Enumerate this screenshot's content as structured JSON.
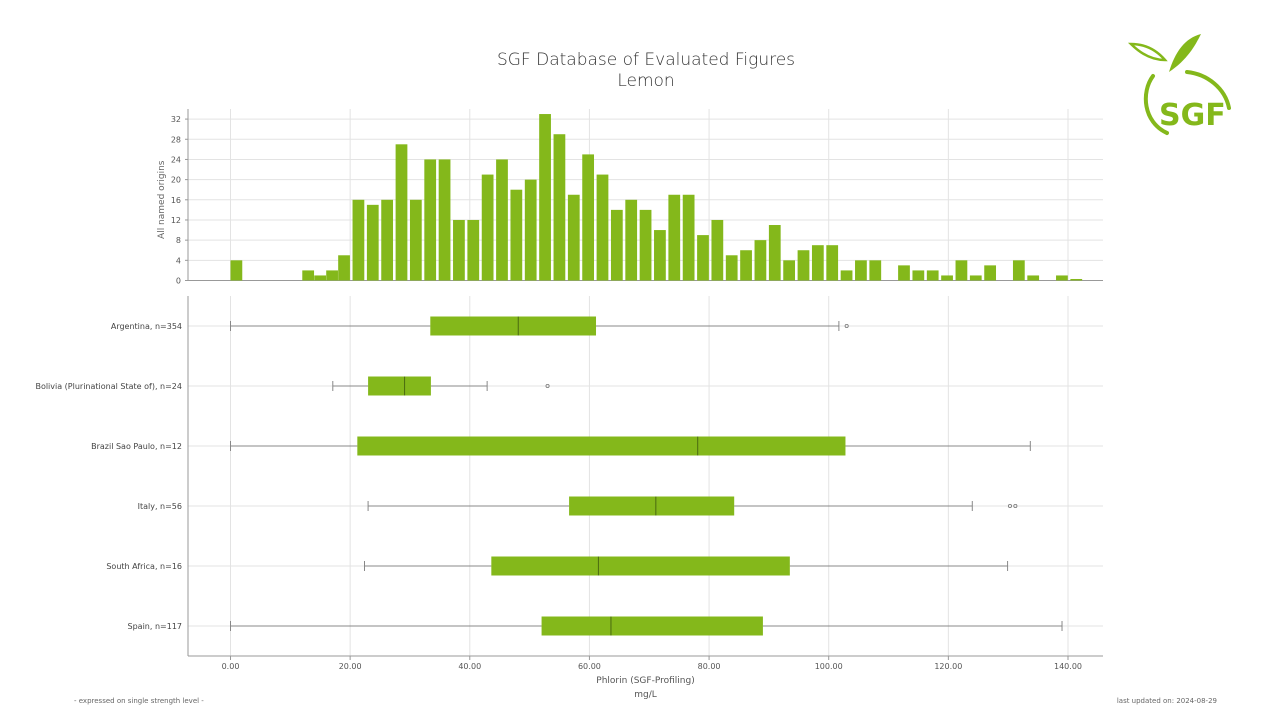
{
  "title_line1": "SGF Database of Evaluated Figures",
  "title_line2": "Lemon",
  "logo_text": "SGF",
  "footer_left": "- expressed on single strength level -",
  "footer_right": "last updated on: 2024-08-29",
  "colors": {
    "bar": "#84b81b",
    "grid": "#e3e3e3",
    "axis": "#999999",
    "whisker": "#888888"
  },
  "chart_data": [
    {
      "type": "bar",
      "ylabel": "All named origins",
      "yticks": [
        0,
        4,
        8,
        12,
        16,
        20,
        24,
        28,
        32
      ],
      "ylim": [
        0,
        34
      ],
      "xlim": [
        -5,
        146
      ],
      "bin_width": 2.1,
      "bins": [
        {
          "x": 0,
          "count": 4
        },
        {
          "x": 12,
          "count": 2
        },
        {
          "x": 14,
          "count": 1
        },
        {
          "x": 16,
          "count": 2
        },
        {
          "x": 18,
          "count": 5
        },
        {
          "x": 20.4,
          "count": 16
        },
        {
          "x": 22.8,
          "count": 15
        },
        {
          "x": 25.2,
          "count": 16
        },
        {
          "x": 27.6,
          "count": 27
        },
        {
          "x": 30.0,
          "count": 16
        },
        {
          "x": 32.4,
          "count": 24
        },
        {
          "x": 34.8,
          "count": 24
        },
        {
          "x": 37.2,
          "count": 12
        },
        {
          "x": 39.6,
          "count": 12
        },
        {
          "x": 42.0,
          "count": 21
        },
        {
          "x": 44.4,
          "count": 24
        },
        {
          "x": 46.8,
          "count": 18
        },
        {
          "x": 49.2,
          "count": 20
        },
        {
          "x": 51.6,
          "count": 33
        },
        {
          "x": 54.0,
          "count": 29
        },
        {
          "x": 56.4,
          "count": 17
        },
        {
          "x": 58.8,
          "count": 25
        },
        {
          "x": 61.2,
          "count": 21
        },
        {
          "x": 63.6,
          "count": 14
        },
        {
          "x": 66.0,
          "count": 16
        },
        {
          "x": 68.4,
          "count": 14
        },
        {
          "x": 70.8,
          "count": 10
        },
        {
          "x": 73.2,
          "count": 17
        },
        {
          "x": 75.6,
          "count": 17
        },
        {
          "x": 78.0,
          "count": 9
        },
        {
          "x": 80.4,
          "count": 12
        },
        {
          "x": 82.8,
          "count": 5
        },
        {
          "x": 85.2,
          "count": 6
        },
        {
          "x": 87.6,
          "count": 8
        },
        {
          "x": 90.0,
          "count": 11
        },
        {
          "x": 92.4,
          "count": 4
        },
        {
          "x": 94.8,
          "count": 6
        },
        {
          "x": 97.2,
          "count": 7
        },
        {
          "x": 99.6,
          "count": 7
        },
        {
          "x": 102.0,
          "count": 2
        },
        {
          "x": 104.4,
          "count": 4
        },
        {
          "x": 106.8,
          "count": 4
        },
        {
          "x": 111.6,
          "count": 3
        },
        {
          "x": 114.0,
          "count": 2
        },
        {
          "x": 116.4,
          "count": 2
        },
        {
          "x": 118.8,
          "count": 1
        },
        {
          "x": 121.2,
          "count": 4
        },
        {
          "x": 123.6,
          "count": 1
        },
        {
          "x": 126.0,
          "count": 3
        },
        {
          "x": 130.8,
          "count": 4
        },
        {
          "x": 133.2,
          "count": 1
        },
        {
          "x": 138.0,
          "count": 1
        },
        {
          "x": 140.4,
          "count": 0.3
        }
      ]
    },
    {
      "type": "box",
      "xlabel": "Phlorin (SGF-Profiling)",
      "xunit": "mg/L",
      "xticks": [
        0,
        20,
        40,
        60,
        80,
        100,
        120,
        140
      ],
      "xticklabels": [
        "0.00",
        "20.00",
        "40.00",
        "60.00",
        "80.00",
        "100.00",
        "120.00",
        "140.00"
      ],
      "xlim": [
        -5,
        146
      ],
      "groups": [
        {
          "label": "Argentina, n=354",
          "whisker_low": 0,
          "q1": 33.4,
          "median": 48.1,
          "q3": 61.1,
          "whisker_high": 101.7,
          "outliers": [
            103.0
          ]
        },
        {
          "label": "Bolivia (Plurinational State of), n=24",
          "whisker_low": 17.1,
          "q1": 23.0,
          "median": 29.1,
          "q3": 33.5,
          "whisker_high": 42.9,
          "outliers": [
            53.0
          ]
        },
        {
          "label": "Brazil Sao Paulo, n=12",
          "whisker_low": 0,
          "q1": 21.2,
          "median": 78.1,
          "q3": 102.8,
          "whisker_high": 133.7,
          "outliers": []
        },
        {
          "label": "Italy, n=56",
          "whisker_low": 23.0,
          "q1": 56.6,
          "median": 71.1,
          "q3": 84.2,
          "whisker_high": 124.0,
          "outliers": [
            130.3,
            131.2
          ]
        },
        {
          "label": "South Africa, n=16",
          "whisker_low": 22.4,
          "q1": 43.6,
          "median": 61.5,
          "q3": 93.5,
          "whisker_high": 129.9,
          "outliers": []
        },
        {
          "label": "Spain, n=117",
          "whisker_low": 0,
          "q1": 52.0,
          "median": 63.6,
          "q3": 89.0,
          "whisker_high": 139.0,
          "outliers": []
        }
      ]
    }
  ]
}
